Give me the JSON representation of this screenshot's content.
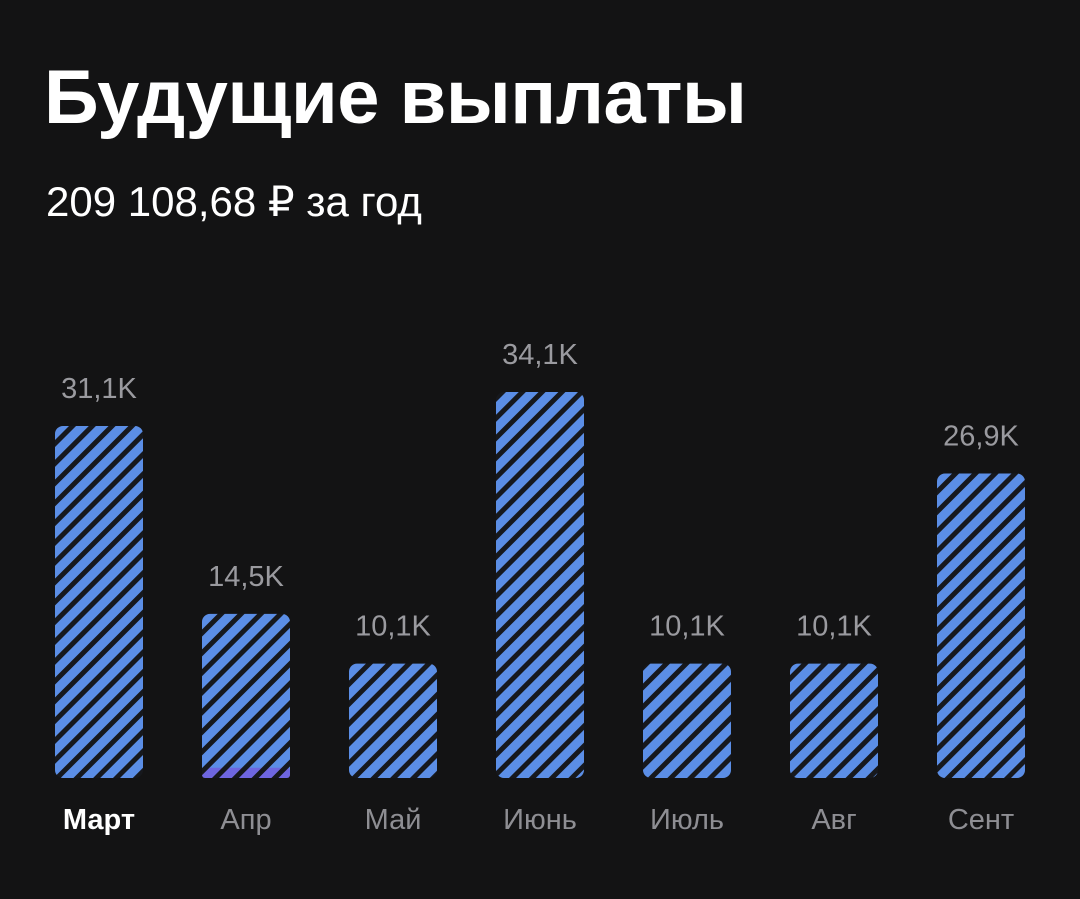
{
  "header": {
    "title": "Будущие выплаты",
    "subtitle": "209 108,68 ₽ за год"
  },
  "colors": {
    "background": "#131314",
    "bar_fill": "#5b8ee6",
    "bar_stripe": "#16181d",
    "bar_accent": "#6e66e0",
    "value_label": "#9a9a9f",
    "tick_label": "#8e8e93",
    "tick_label_selected": "#ffffff"
  },
  "chart_data": {
    "type": "bar",
    "categories": [
      "Март",
      "Апр",
      "Май",
      "Июнь",
      "Июль",
      "Авг",
      "Сент"
    ],
    "values": [
      31.1,
      14.5,
      10.1,
      34.1,
      10.1,
      10.1,
      26.9
    ],
    "value_labels": [
      "31,1K",
      "14,5K",
      "10,1K",
      "34,1K",
      "10,1K",
      "10,1K",
      "26,9K"
    ],
    "selected_category": "Март",
    "accent_segment": {
      "category": "Апр",
      "value": 0.9
    },
    "ylim": [
      0,
      34.1
    ],
    "grid": false,
    "legend": "none"
  }
}
